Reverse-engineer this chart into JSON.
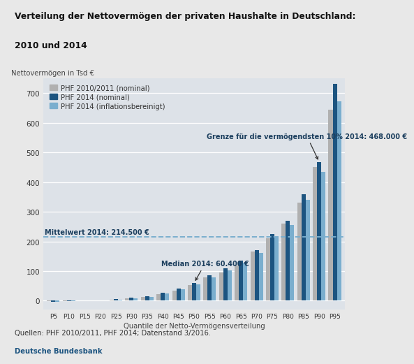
{
  "title_line1": "Verteilung der Nettovermögen der privaten Haushalte in Deutschland:",
  "title_line2": "2010 und 2014",
  "ylabel": "Nettovermögen in Tsd €",
  "xlabel": "Quantile der Netto-Vermögensverteilung",
  "categories": [
    "P5",
    "P10",
    "P15",
    "P20",
    "P25",
    "P30",
    "P35",
    "P40",
    "P45",
    "P50",
    "P55",
    "P60",
    "P65",
    "P70",
    "P75",
    "P80",
    "P85",
    "P90",
    "P95"
  ],
  "phf2010": [
    -2,
    -1,
    0.5,
    1,
    3,
    8,
    13,
    22,
    35,
    52,
    80,
    95,
    120,
    165,
    210,
    260,
    330,
    450,
    645
  ],
  "phf2014": [
    -3,
    -1,
    1,
    2,
    5,
    10,
    16,
    27,
    41,
    60,
    85,
    110,
    135,
    170,
    225,
    270,
    358,
    468,
    730
  ],
  "phf2014_infl": [
    -2.5,
    -1,
    0.8,
    1.5,
    4,
    9,
    14,
    25,
    38,
    56,
    80,
    103,
    128,
    162,
    215,
    255,
    340,
    435,
    672
  ],
  "legend_labels": [
    "PHF 2010/2011 (nominal)",
    "PHF 2014 (nominal)",
    "PHF 2014 (inflationsbereinigt)"
  ],
  "color_2010": "#b0b0b0",
  "color_2014": "#1c5480",
  "color_2014_infl": "#7aaece",
  "mean_line": 214.5,
  "mean_label": "Mittelwert 2014: 214.500 €",
  "median_label": "Median 2014: 60.400 €",
  "median_value": 60.4,
  "grenze_label": "Grenze für die vermögendsten 10% 2014: 468.000 €",
  "grenze_value": 468,
  "ylim": [
    -30,
    750
  ],
  "yticks": [
    0,
    100,
    200,
    300,
    400,
    500,
    600,
    700
  ],
  "footnote_line1": "Quellen: PHF 2010/2011, PHF 2014; Datenstand 3/2016.",
  "footnote_line2": "Deutsche Bundesbank",
  "bg_outer": "#e8e8e8",
  "bg_chart": "#dde2e8",
  "title_bg": "#e0e0e0",
  "annotation_color": "#1c3f5e"
}
